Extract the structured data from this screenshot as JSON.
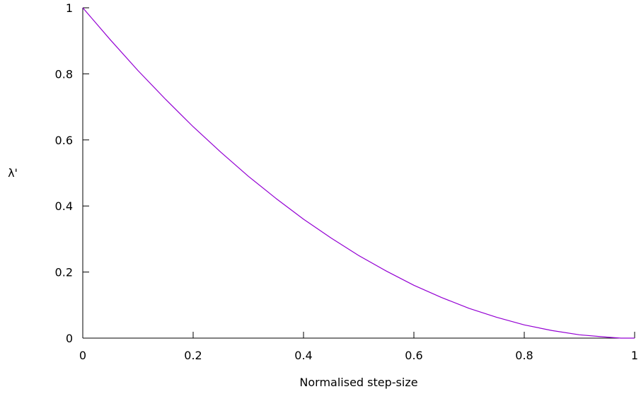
{
  "chart_data": {
    "type": "line",
    "title": "",
    "xlabel": "Normalised step-size",
    "ylabel": "λ'",
    "xlim": [
      0,
      1
    ],
    "ylim": [
      0,
      1
    ],
    "x_ticks": [
      0,
      0.2,
      0.4,
      0.6,
      0.8,
      1
    ],
    "x_tick_labels": [
      "0",
      "0.2",
      "0.4",
      "0.6",
      "0.8",
      "1"
    ],
    "y_ticks": [
      0,
      0.2,
      0.4,
      0.6,
      0.8,
      1
    ],
    "y_tick_labels": [
      "0",
      "0.2",
      "0.4",
      "0.6",
      "0.8",
      "1"
    ],
    "grid": false,
    "legend": "none",
    "series": [
      {
        "color": "#9400d3",
        "x": [
          0,
          0.05,
          0.1,
          0.15,
          0.2,
          0.25,
          0.3,
          0.35,
          0.4,
          0.45,
          0.5,
          0.55,
          0.6,
          0.65,
          0.7,
          0.75,
          0.8,
          0.85,
          0.9,
          0.95,
          0.975,
          1
        ],
        "y": [
          1,
          0.903,
          0.81,
          0.723,
          0.64,
          0.563,
          0.49,
          0.423,
          0.36,
          0.303,
          0.25,
          0.203,
          0.16,
          0.123,
          0.09,
          0.063,
          0.04,
          0.023,
          0.01,
          0.003,
          0.0,
          0.0
        ]
      }
    ]
  }
}
